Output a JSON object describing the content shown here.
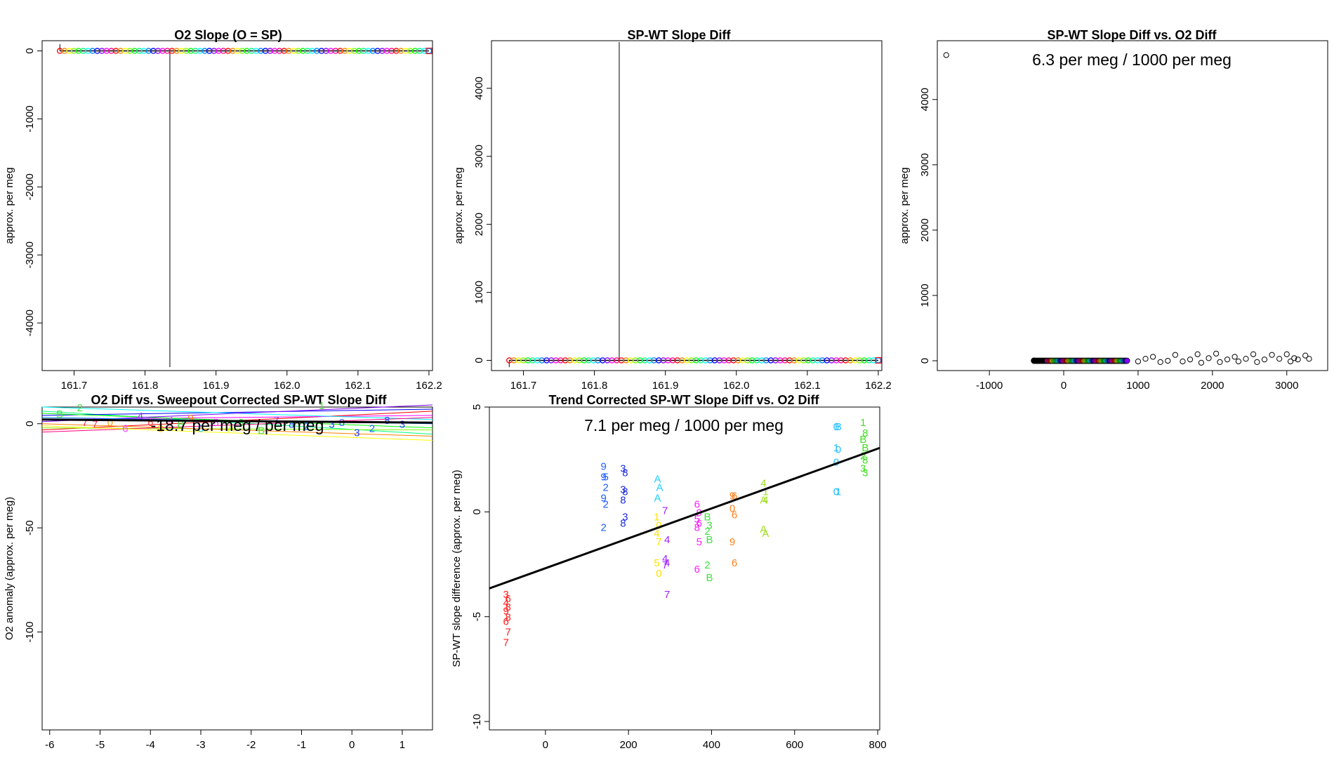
{
  "chart_data": [
    {
      "id": "p1",
      "type": "scatter",
      "title": "O2 Slope (O = SP)",
      "ylabel": "approx. per meg",
      "xlim": [
        161.655,
        162.205
      ],
      "ylim": [
        -4700,
        150
      ],
      "xticks": [
        "161.7",
        "161.8",
        "161.9",
        "162.0",
        "162.1",
        "162.2"
      ],
      "yticks": [
        "0",
        "-1000",
        "-2000",
        "-3000",
        "-4000"
      ],
      "xrange": [
        161.68,
        162.2
      ],
      "y_value": 0,
      "spike": {
        "x": 161.835,
        "y_min": -4650,
        "y_max": 0
      },
      "y_range_high": 100,
      "points": 80
    },
    {
      "id": "p2",
      "type": "scatter",
      "title": "SP-WT Slope Diff",
      "ylabel": "approx. per meg",
      "xlim": [
        161.655,
        162.205
      ],
      "ylim": [
        -150,
        4700
      ],
      "xticks": [
        "161.7",
        "161.8",
        "161.9",
        "162.0",
        "162.1",
        "162.2"
      ],
      "yticks": [
        "0",
        "1000",
        "2000",
        "3000",
        "4000"
      ],
      "xrange": [
        161.68,
        162.2
      ],
      "y_value": 0,
      "spike": {
        "x": 161.835,
        "y_min": 0,
        "y_max": 4680
      },
      "y_range_low": -100,
      "points": 80
    },
    {
      "id": "p3",
      "type": "scatter",
      "title": "SP-WT Slope Diff vs. O2 Diff",
      "ylabel": "approx. per meg",
      "annotation": "6.3 per meg / 1000 per meg",
      "xlim": [
        -1700,
        3550
      ],
      "ylim": [
        -150,
        4900
      ],
      "xticks": [
        "-1000",
        "0",
        "1000",
        "2000",
        "3000"
      ],
      "yticks": [
        "0",
        "1000",
        "2000",
        "3000",
        "4000"
      ],
      "outliers": [
        [
          -1580,
          4680
        ],
        [
          -400,
          5
        ],
        [
          -150,
          0
        ],
        [
          1000,
          -10
        ],
        [
          1100,
          30
        ],
        [
          1200,
          60
        ],
        [
          1300,
          -20
        ],
        [
          1400,
          0
        ],
        [
          1500,
          90
        ],
        [
          1600,
          -10
        ],
        [
          1700,
          20
        ],
        [
          1800,
          100
        ],
        [
          1850,
          -30
        ],
        [
          1950,
          40
        ],
        [
          2050,
          110
        ],
        [
          2100,
          -20
        ],
        [
          2200,
          20
        ],
        [
          2300,
          60
        ],
        [
          2350,
          -10
        ],
        [
          2450,
          30
        ],
        [
          2550,
          100
        ],
        [
          2600,
          -20
        ],
        [
          2700,
          20
        ],
        [
          2800,
          90
        ],
        [
          2900,
          30
        ],
        [
          3000,
          100
        ],
        [
          3050,
          -10
        ],
        [
          3100,
          40
        ],
        [
          3150,
          20
        ],
        [
          3250,
          80
        ],
        [
          3300,
          30
        ]
      ],
      "cluster": {
        "x_min": -400,
        "x_max": 850,
        "y": 0
      }
    },
    {
      "id": "p4",
      "type": "line",
      "title": "O2 Diff vs. Sweepout Corrected SP-WT Slope Diff",
      "ylabel": "O2 anomaly (approx. per meg)",
      "annotation": "-18.7 per meg / per meg",
      "xlim": [
        -6.15,
        1.6
      ],
      "ylim": [
        -147,
        8
      ],
      "xticks": [
        "-6",
        "-5",
        "-4",
        "-3",
        "-2",
        "-1",
        "0",
        "1"
      ],
      "yticks": [
        "0",
        "-50",
        "-100"
      ],
      "fit": {
        "y_left": 2,
        "y_right": 0.5
      },
      "markers": [
        {
          "x": -5.8,
          "y": 5,
          "c": "#40e040",
          "t": "B"
        },
        {
          "x": -5.4,
          "y": 8,
          "c": "#40e040",
          "t": "2"
        },
        {
          "x": -5.3,
          "y": 1,
          "c": "#ff3060",
          "t": "7"
        },
        {
          "x": -5.1,
          "y": 0,
          "c": "#ff3060",
          "t": "7"
        },
        {
          "x": -4.8,
          "y": 1,
          "c": "#ffa000",
          "t": "0"
        },
        {
          "x": -4.5,
          "y": -2,
          "c": "#ff40ff",
          "t": "6"
        },
        {
          "x": -4.2,
          "y": 4,
          "c": "#a020ff",
          "t": "4"
        },
        {
          "x": -4.0,
          "y": 1,
          "c": "#ff4040",
          "t": "6"
        },
        {
          "x": -3.8,
          "y": -2,
          "c": "#ffc000",
          "t": "8"
        },
        {
          "x": -3.6,
          "y": 2,
          "c": "#ff40ff",
          "t": "4"
        },
        {
          "x": -3.4,
          "y": 0,
          "c": "#40e040",
          "t": "B"
        },
        {
          "x": -3.2,
          "y": 3,
          "c": "#ff8000",
          "t": "9"
        },
        {
          "x": -3.0,
          "y": -2,
          "c": "#20c0ff",
          "t": "0"
        },
        {
          "x": -2.7,
          "y": 1,
          "c": "#ff40ff",
          "t": "5"
        },
        {
          "x": -2.4,
          "y": -2,
          "c": "#c0ff00",
          "t": "A"
        },
        {
          "x": -2.2,
          "y": 1,
          "c": "#40e040",
          "t": "3"
        },
        {
          "x": -1.8,
          "y": -3,
          "c": "#40e040",
          "t": "B"
        },
        {
          "x": -1.5,
          "y": 2,
          "c": "#a020ff",
          "t": "7"
        },
        {
          "x": -1.2,
          "y": 0,
          "c": "#2040ff",
          "t": "8"
        },
        {
          "x": -0.9,
          "y": -1,
          "c": "#2060ff",
          "t": "2"
        },
        {
          "x": -0.6,
          "y": 9,
          "c": "#40e040",
          "t": "1"
        },
        {
          "x": -0.4,
          "y": 0,
          "c": "#2040ff",
          "t": "3"
        },
        {
          "x": -0.2,
          "y": 1,
          "c": "#4060ff",
          "t": "8"
        },
        {
          "x": 0.1,
          "y": -4,
          "c": "#2040ff",
          "t": "3"
        },
        {
          "x": 0.4,
          "y": -2,
          "c": "#2060ff",
          "t": "2"
        },
        {
          "x": 0.7,
          "y": 2,
          "c": "#2040ff",
          "t": "8"
        },
        {
          "x": 1.0,
          "y": 0,
          "c": "#2040ff",
          "t": "3"
        }
      ]
    },
    {
      "id": "p5",
      "type": "scatter",
      "title": "Trend Corrected SP-WT Slope Diff vs. O2 Diff",
      "ylabel": "SP-WT slope difference (approx. per meg)",
      "annotation": "7.1 per meg / 1000 per meg",
      "xlim": [
        -135,
        805
      ],
      "ylim": [
        -10.4,
        5
      ],
      "xticks": [
        "0",
        "200",
        "400",
        "600",
        "800"
      ],
      "yticks": [
        "5",
        "0",
        "-5",
        "-10"
      ],
      "fit": {
        "x0": -135,
        "y0": -3.65,
        "x1": 805,
        "y1": 3.05
      },
      "groups": [
        {
          "x": -95,
          "c": "#ff2020",
          "items": [
            [
              "3",
              -3.9
            ],
            [
              "6",
              -4.1
            ],
            [
              "4",
              -4.3
            ],
            [
              "8",
              -4.5
            ],
            [
              "9",
              -4.7
            ],
            [
              "8",
              -5.0
            ],
            [
              "6",
              -5.2
            ],
            [
              "7",
              -5.7
            ],
            [
              "7",
              -6.2
            ]
          ]
        },
        {
          "x": 140,
          "c": "#2060ff",
          "items": [
            [
              "9",
              2.2
            ],
            [
              "5",
              1.7
            ],
            [
              "9",
              1.7
            ],
            [
              "2",
              1.2
            ],
            [
              "9",
              0.7
            ],
            [
              "2",
              0.4
            ],
            [
              "2",
              -0.7
            ]
          ]
        },
        {
          "x": 187,
          "c": "#2030e0",
          "items": [
            [
              "3",
              2.1
            ],
            [
              "8",
              1.9
            ],
            [
              "3",
              1.1
            ],
            [
              "8",
              1.0
            ],
            [
              "8",
              0.6
            ],
            [
              "3",
              -0.2
            ],
            [
              "8",
              -0.5
            ]
          ]
        },
        {
          "x": 270,
          "c": "#20d0ff",
          "items": [
            [
              "A",
              1.6
            ],
            [
              "A",
              1.2
            ],
            [
              "A",
              0.7
            ]
          ]
        },
        {
          "x": 268,
          "c": "#ffe000",
          "items": [
            [
              "1",
              -0.2
            ],
            [
              "0",
              -0.6
            ],
            [
              "4",
              -1.0
            ],
            [
              "7",
              -1.4
            ],
            [
              "5",
              -2.4
            ],
            [
              "0",
              -2.9
            ]
          ]
        },
        {
          "x": 288,
          "c": "#a020ff",
          "items": [
            [
              "7",
              0.1
            ],
            [
              "4",
              -1.3
            ],
            [
              "4",
              -2.2
            ],
            [
              "4",
              -2.4
            ],
            [
              "7",
              -2.5
            ],
            [
              "7",
              -3.9
            ]
          ]
        },
        {
          "x": 365,
          "c": "#ff20ff",
          "items": [
            [
              "6",
              0.4
            ],
            [
              "9",
              0.0
            ],
            [
              "5",
              -0.3
            ],
            [
              "6",
              -0.5
            ],
            [
              "8",
              -0.7
            ],
            [
              "5",
              -1.4
            ],
            [
              "6",
              -2.7
            ]
          ]
        },
        {
          "x": 390,
          "c": "#40e040",
          "items": [
            [
              "B",
              -0.2
            ],
            [
              "3",
              -0.6
            ],
            [
              "2",
              -0.9
            ],
            [
              "B",
              -1.3
            ],
            [
              "2",
              -2.5
            ],
            [
              "B",
              -3.1
            ]
          ]
        },
        {
          "x": 450,
          "c": "#ff8020",
          "items": [
            [
              "9",
              0.8
            ],
            [
              "6",
              0.8
            ],
            [
              "0",
              0.2
            ],
            [
              "6",
              -0.1
            ],
            [
              "9",
              -1.4
            ],
            [
              "6",
              -2.4
            ]
          ]
        },
        {
          "x": 525,
          "c": "#a0e020",
          "items": [
            [
              "4",
              1.4
            ],
            [
              "1",
              1.0
            ],
            [
              "A",
              0.6
            ],
            [
              "4",
              0.6
            ],
            [
              "A",
              -0.8
            ],
            [
              "A",
              -1.0
            ]
          ]
        },
        {
          "x": 700,
          "c": "#20c0ff",
          "items": [
            [
              "0",
              4.1
            ],
            [
              "B",
              4.1
            ],
            [
              "1",
              3.1
            ],
            [
              "0",
              3.0
            ],
            [
              "0",
              2.4
            ],
            [
              "1",
              1.0
            ],
            [
              "0",
              1.0
            ]
          ]
        },
        {
          "x": 765,
          "c": "#40e020",
          "items": [
            [
              "1",
              4.3
            ],
            [
              "8",
              3.8
            ],
            [
              "B",
              3.5
            ],
            [
              "B",
              3.1
            ],
            [
              "2",
              2.7
            ],
            [
              "8",
              2.5
            ],
            [
              "3",
              2.1
            ],
            [
              "3",
              1.9
            ]
          ]
        }
      ]
    }
  ]
}
